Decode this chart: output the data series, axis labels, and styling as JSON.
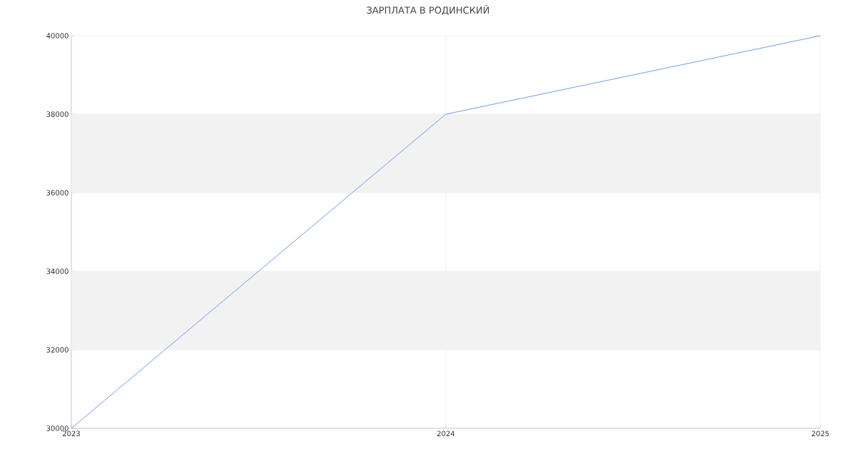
{
  "chart_data": {
    "type": "line",
    "title": "ЗАРПЛАТА В РОДИНСКИЙ",
    "x": [
      2023,
      2024,
      2025
    ],
    "series": [
      {
        "color": "#6f9bf0",
        "values": [
          30000,
          38000,
          40000
        ]
      }
    ],
    "xlim": [
      2023,
      2025
    ],
    "xticks": [
      2023,
      2024,
      2025
    ],
    "ylim": [
      30000,
      40000
    ],
    "yticks": [
      30000,
      32000,
      34000,
      36000,
      38000,
      40000
    ],
    "grid": true,
    "bands": [
      {
        "axis": "y",
        "from": 32000,
        "to": 34000,
        "color": "#f2f2f2"
      },
      {
        "axis": "y",
        "from": 36000,
        "to": 38000,
        "color": "#f2f2f2"
      }
    ]
  }
}
